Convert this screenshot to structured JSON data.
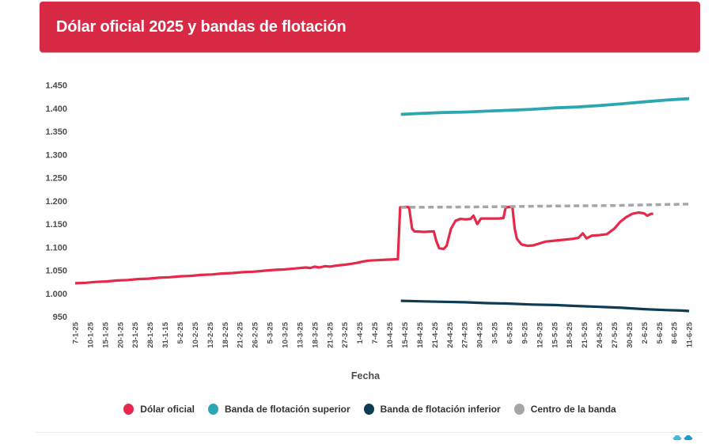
{
  "banner": {
    "title": "Dólar oficial 2025 y bandas de flotación",
    "background": "#d92a45",
    "text_color": "#ffffff"
  },
  "chart_data": {
    "type": "line",
    "title": "Dólar oficial 2025 y bandas de flotación",
    "xlabel": "Fecha",
    "ylabel": "",
    "ylim": [
      950,
      1450
    ],
    "grid": false,
    "legend_position": "bottom-center",
    "y_ticks": [
      {
        "label": "1.450",
        "value": 1450
      },
      {
        "label": "1.400",
        "value": 1400
      },
      {
        "label": "1.350",
        "value": 1350
      },
      {
        "label": "1.300",
        "value": 1300
      },
      {
        "label": "1.250",
        "value": 1250
      },
      {
        "label": "1.200",
        "value": 1200
      },
      {
        "label": "1.150",
        "value": 1150
      },
      {
        "label": "1.100",
        "value": 1100
      },
      {
        "label": "1.050",
        "value": 1050
      },
      {
        "label": "1.000",
        "value": 1000
      },
      {
        "label": "950",
        "value": 950
      }
    ],
    "x_tick_labels": [
      "7-1-25",
      "10-1-25",
      "15-1-25",
      "20-1-25",
      "23-1-25",
      "28-1-25",
      "31-1-15",
      "5-2-25",
      "10-2-25",
      "13-2-25",
      "18-2-25",
      "21-2-25",
      "26-2-25",
      "5-3-25",
      "10-3-25",
      "13-3-25",
      "18-3-25",
      "21-3-25",
      "27-3-25",
      "1-4-25",
      "7-4-25",
      "10-4-25",
      "15-4-25",
      "18-4-25",
      "21-4-25",
      "24-4-25",
      "27-4-25",
      "30-4-25",
      "3-5-25",
      "6-5-25",
      "9-5-25",
      "12-5-25",
      "15-5-25",
      "18-5-25",
      "21-5-25",
      "24-5-25",
      "27-5-25",
      "30-5-25",
      "2-6-25",
      "5-6-25",
      "8-6-25",
      "11-6-25"
    ],
    "x_unit": "tick index into x_tick_labels",
    "axis_text_color": "#4d4d4d",
    "series": [
      {
        "name": "Dólar oficial",
        "color": "#e5294a",
        "dash": "solid",
        "width": 3.2,
        "points": [
          [
            0,
            1022
          ],
          [
            0.7,
            1023
          ],
          [
            1.4,
            1025
          ],
          [
            2.1,
            1026
          ],
          [
            2.8,
            1028
          ],
          [
            3.5,
            1029
          ],
          [
            4.2,
            1031
          ],
          [
            4.9,
            1032
          ],
          [
            5.6,
            1034
          ],
          [
            6.3,
            1035
          ],
          [
            7,
            1037
          ],
          [
            7.7,
            1038
          ],
          [
            8.4,
            1040
          ],
          [
            9.1,
            1041
          ],
          [
            9.8,
            1043
          ],
          [
            10.5,
            1044
          ],
          [
            11.2,
            1046
          ],
          [
            11.9,
            1047
          ],
          [
            12.6,
            1049
          ],
          [
            13.3,
            1051
          ],
          [
            14,
            1052
          ],
          [
            14.7,
            1054
          ],
          [
            15.4,
            1056
          ],
          [
            15.7,
            1055
          ],
          [
            16,
            1058
          ],
          [
            16.3,
            1056
          ],
          [
            16.7,
            1059
          ],
          [
            17,
            1058
          ],
          [
            17.4,
            1060
          ],
          [
            18,
            1062
          ],
          [
            18.4,
            1064
          ],
          [
            18.8,
            1066
          ],
          [
            19.2,
            1069
          ],
          [
            19.6,
            1071
          ],
          [
            20.2,
            1072
          ],
          [
            20.8,
            1073
          ],
          [
            21.55,
            1074
          ],
          [
            21.7,
            1186
          ],
          [
            22.1,
            1187
          ],
          [
            22.3,
            1186
          ],
          [
            22.5,
            1140
          ],
          [
            22.65,
            1134
          ],
          [
            23.3,
            1133
          ],
          [
            23.95,
            1134
          ],
          [
            24.1,
            1115
          ],
          [
            24.3,
            1098
          ],
          [
            24.6,
            1096
          ],
          [
            24.8,
            1103
          ],
          [
            25.1,
            1140
          ],
          [
            25.4,
            1157
          ],
          [
            25.7,
            1161
          ],
          [
            26.1,
            1160
          ],
          [
            26.4,
            1161
          ],
          [
            26.6,
            1168
          ],
          [
            26.85,
            1150
          ],
          [
            27.1,
            1162
          ],
          [
            27.7,
            1162
          ],
          [
            28.3,
            1162
          ],
          [
            28.6,
            1163
          ],
          [
            28.75,
            1186
          ],
          [
            29.05,
            1187
          ],
          [
            29.2,
            1186
          ],
          [
            29.35,
            1140
          ],
          [
            29.5,
            1118
          ],
          [
            29.8,
            1106
          ],
          [
            30.2,
            1103
          ],
          [
            30.6,
            1104
          ],
          [
            31,
            1108
          ],
          [
            31.4,
            1112
          ],
          [
            32,
            1114
          ],
          [
            32.6,
            1116
          ],
          [
            33.2,
            1118
          ],
          [
            33.6,
            1120
          ],
          [
            33.9,
            1130
          ],
          [
            34.15,
            1119
          ],
          [
            34.5,
            1125
          ],
          [
            35,
            1126
          ],
          [
            35.5,
            1128
          ],
          [
            36,
            1140
          ],
          [
            36.4,
            1155
          ],
          [
            36.8,
            1165
          ],
          [
            37.2,
            1172
          ],
          [
            37.6,
            1175
          ],
          [
            38,
            1173
          ],
          [
            38.2,
            1168
          ],
          [
            38.45,
            1172
          ],
          [
            38.6,
            1172
          ]
        ]
      },
      {
        "name": "Banda de flotación superior",
        "color": "#2ca7b2",
        "dash": "solid",
        "width": 3.8,
        "points": [
          [
            21.75,
            1387
          ],
          [
            23,
            1389
          ],
          [
            24.5,
            1391
          ],
          [
            26,
            1392
          ],
          [
            27.5,
            1394
          ],
          [
            29,
            1396
          ],
          [
            30.5,
            1398
          ],
          [
            32,
            1401
          ],
          [
            33.5,
            1403
          ],
          [
            35,
            1406
          ],
          [
            36.5,
            1410
          ],
          [
            38,
            1414
          ],
          [
            39.5,
            1418
          ],
          [
            40.5,
            1420
          ],
          [
            41,
            1421
          ]
        ]
      },
      {
        "name": "Banda de flotación inferior",
        "color": "#0e3c54",
        "dash": "solid",
        "width": 3.2,
        "points": [
          [
            21.75,
            984
          ],
          [
            23,
            983
          ],
          [
            24.5,
            982
          ],
          [
            26,
            981
          ],
          [
            27.5,
            979
          ],
          [
            29,
            978
          ],
          [
            30.5,
            976
          ],
          [
            32,
            975
          ],
          [
            33.5,
            973
          ],
          [
            35,
            971
          ],
          [
            36.5,
            969
          ],
          [
            38,
            966
          ],
          [
            39.5,
            964
          ],
          [
            40.5,
            963
          ],
          [
            41,
            962
          ]
        ]
      },
      {
        "name": "Centro de la banda",
        "color": "#a6a6a6",
        "dash": "dashed",
        "width": 3.5,
        "points": [
          [
            21.75,
            1186
          ],
          [
            27,
            1187
          ],
          [
            32,
            1189
          ],
          [
            36,
            1190
          ],
          [
            39,
            1192
          ],
          [
            41,
            1193
          ]
        ]
      }
    ]
  },
  "footer": {
    "divider_color": "#ececec",
    "partial_logo_colors": [
      "#45b6e0",
      "#1b9ad2"
    ]
  }
}
